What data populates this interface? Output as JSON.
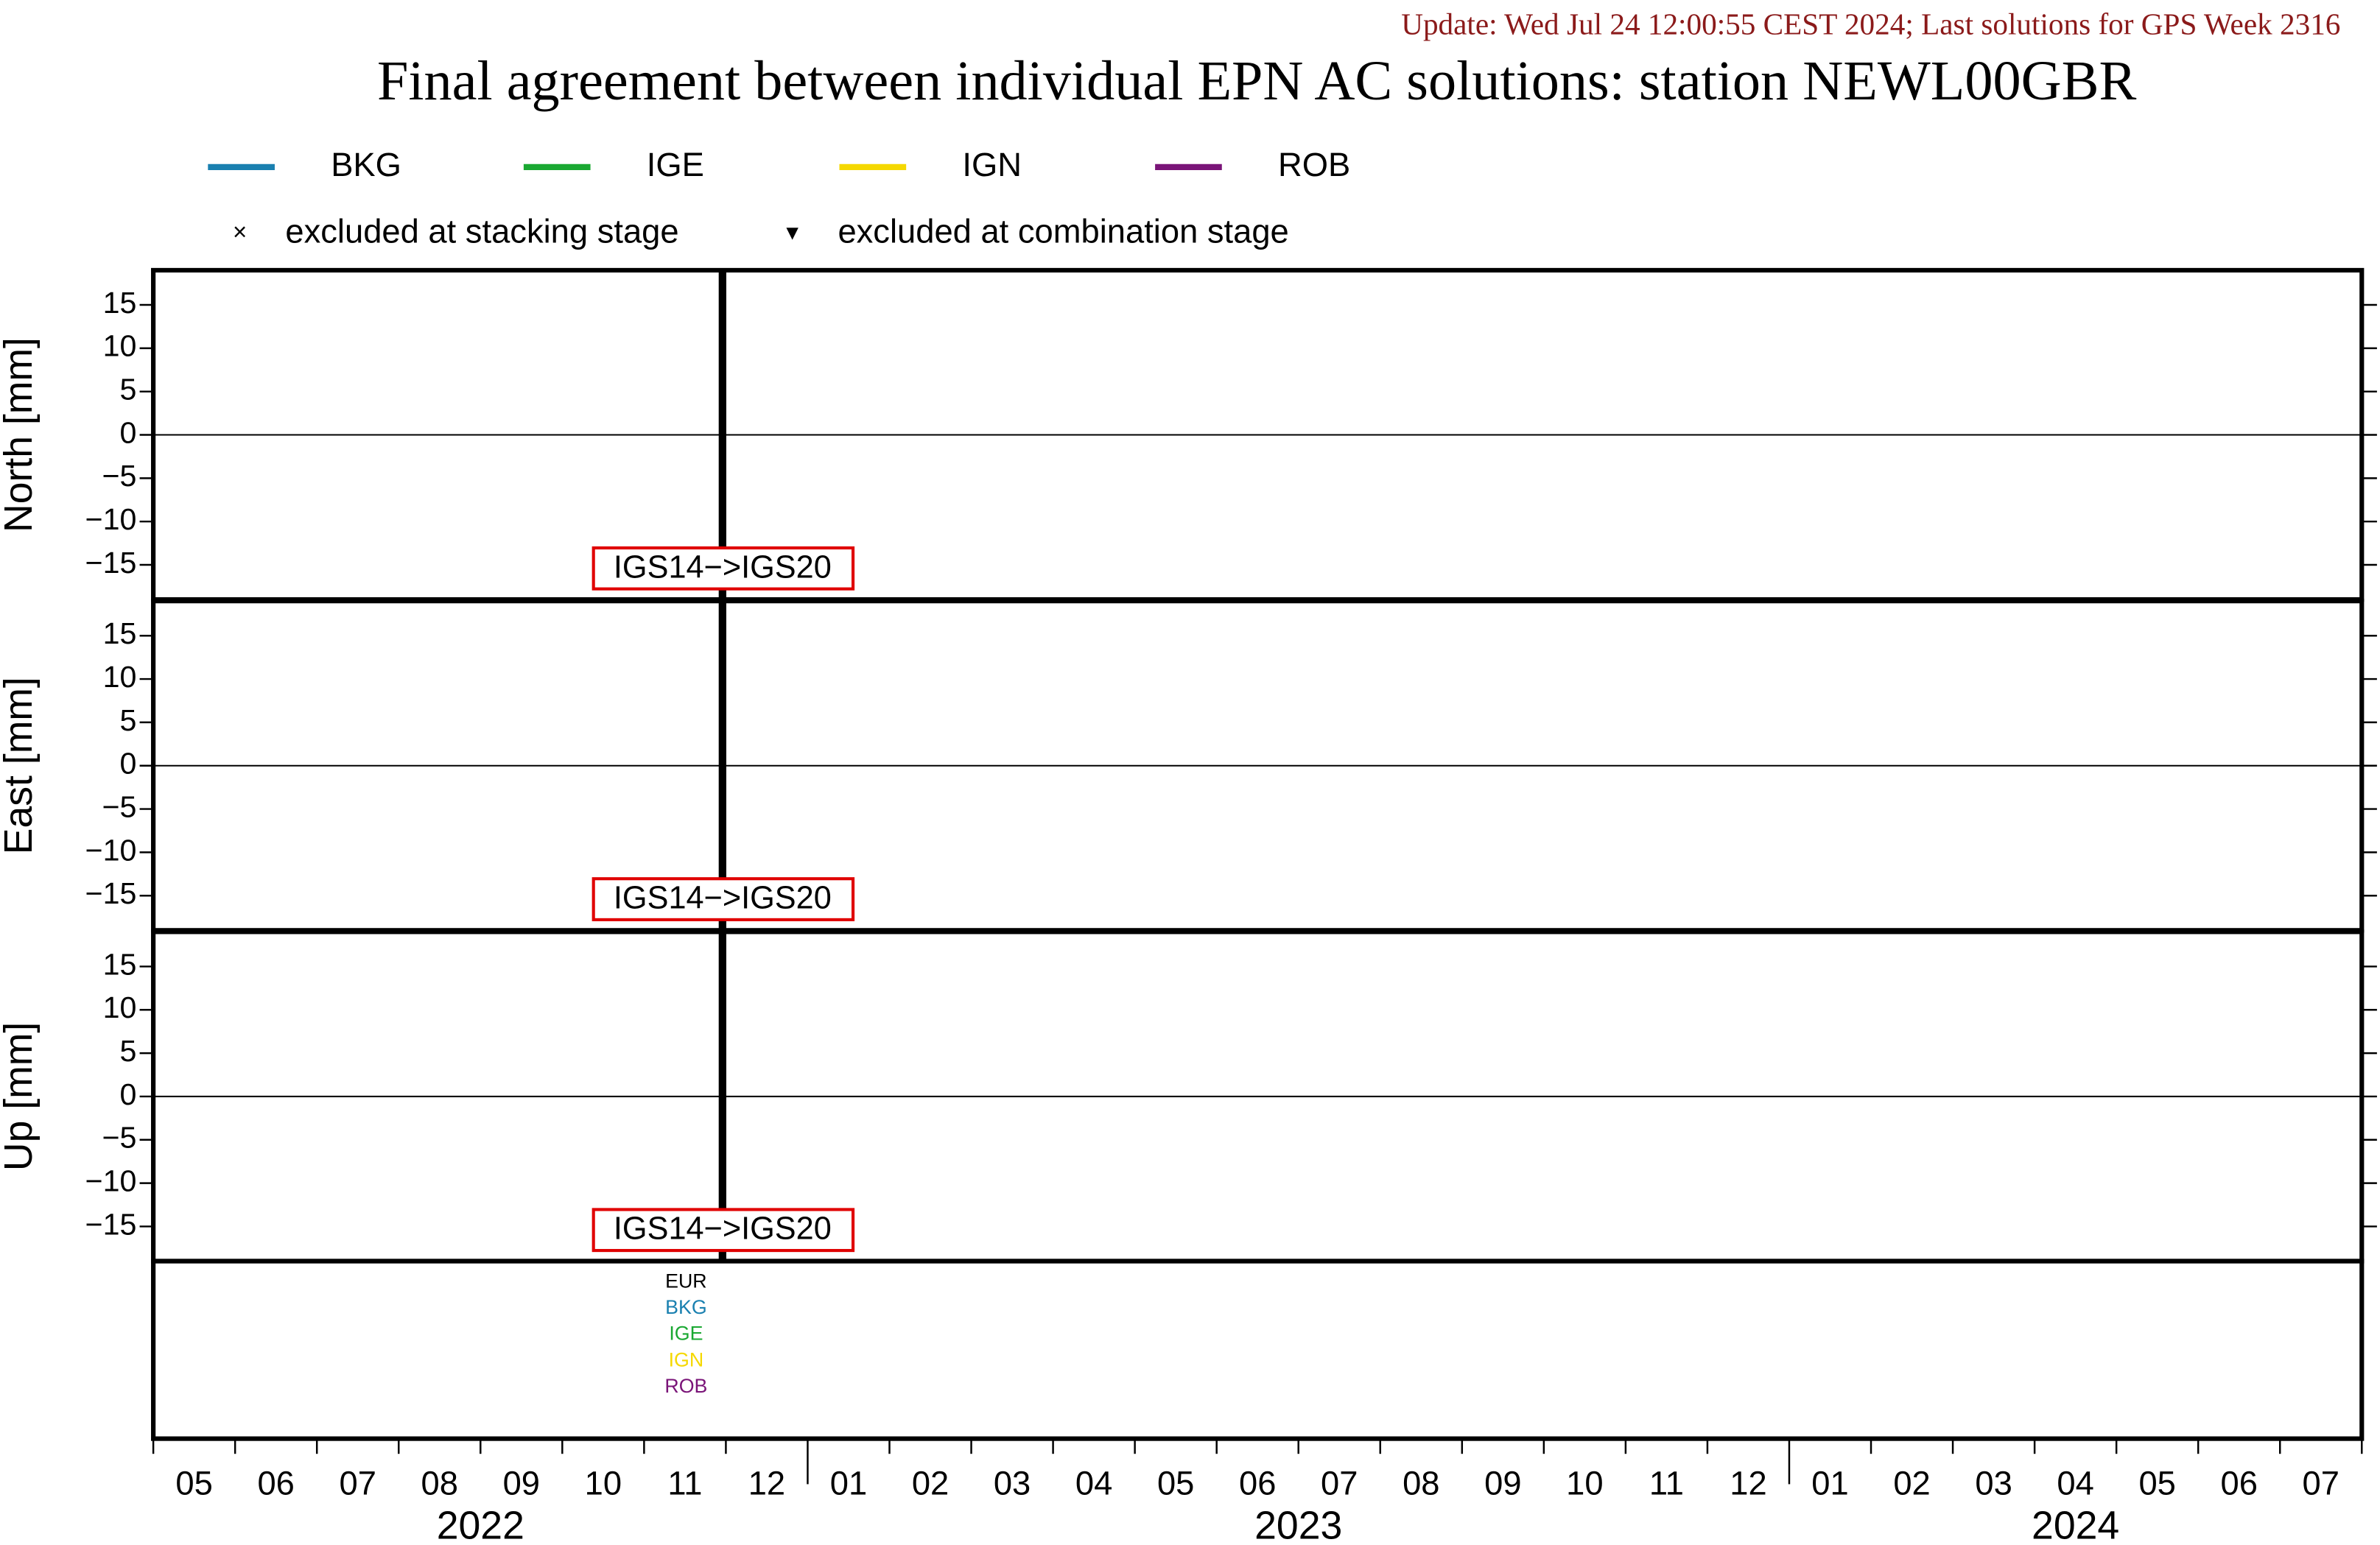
{
  "chart_data": {
    "type": "line",
    "title": "Final agreement between individual EPN AC solutions: station NEWL00GBR",
    "subtitle": "Update: Wed Jul 24 12:00:55 CEST 2024; Last solutions for GPS Week 2316",
    "series": [
      {
        "name": "BKG",
        "color": "#1a80b0"
      },
      {
        "name": "IGE",
        "color": "#1aa832"
      },
      {
        "name": "IGN",
        "color": "#f5d800"
      },
      {
        "name": "ROB",
        "color": "#7a1478"
      }
    ],
    "markers": [
      {
        "symbol": "×",
        "label": "excluded at stacking stage"
      },
      {
        "symbol": "▾",
        "label": "excluded at combination stage"
      }
    ],
    "panels": [
      {
        "ylabel": "North [mm]",
        "ylim": [
          -19,
          19
        ],
        "yticks": [
          15,
          10,
          5,
          0,
          {
            "value": -5,
            "label": "−5"
          },
          {
            "value": -10,
            "label": "−10"
          },
          {
            "value": -15,
            "label": "−15"
          }
        ],
        "annotation": "IGS14−>IGS20"
      },
      {
        "ylabel": "East [mm]",
        "ylim": [
          -19,
          19
        ],
        "yticks": [
          15,
          10,
          5,
          0,
          {
            "value": -5,
            "label": "−5"
          },
          {
            "value": -10,
            "label": "−10"
          },
          {
            "value": -15,
            "label": "−15"
          }
        ],
        "annotation": "IGS14−>IGS20"
      },
      {
        "ylabel": "Up [mm]",
        "ylim": [
          -19,
          19
        ],
        "yticks": [
          15,
          10,
          5,
          0,
          {
            "value": -5,
            "label": "−5"
          },
          {
            "value": -10,
            "label": "−10"
          },
          {
            "value": -15,
            "label": "−15"
          }
        ],
        "annotation": "IGS14−>IGS20"
      }
    ],
    "x_groups": [
      {
        "year": "2022",
        "months": [
          "05",
          "06",
          "07",
          "08",
          "09",
          "10",
          "11",
          "12"
        ]
      },
      {
        "year": "2023",
        "months": [
          "01",
          "02",
          "03",
          "04",
          "05",
          "06",
          "07",
          "08",
          "09",
          "10",
          "11",
          "12"
        ]
      },
      {
        "year": "2024",
        "months": [
          "01",
          "02",
          "03",
          "04",
          "05",
          "06",
          "07"
        ]
      }
    ],
    "solution_list": [
      {
        "label": "EUR",
        "color": "#000000"
      },
      {
        "label": "BKG",
        "color": "#1a80b0"
      },
      {
        "label": "IGE",
        "color": "#1aa832"
      },
      {
        "label": "IGN",
        "color": "#f5d800"
      },
      {
        "label": "ROB",
        "color": "#7a1478"
      }
    ]
  }
}
